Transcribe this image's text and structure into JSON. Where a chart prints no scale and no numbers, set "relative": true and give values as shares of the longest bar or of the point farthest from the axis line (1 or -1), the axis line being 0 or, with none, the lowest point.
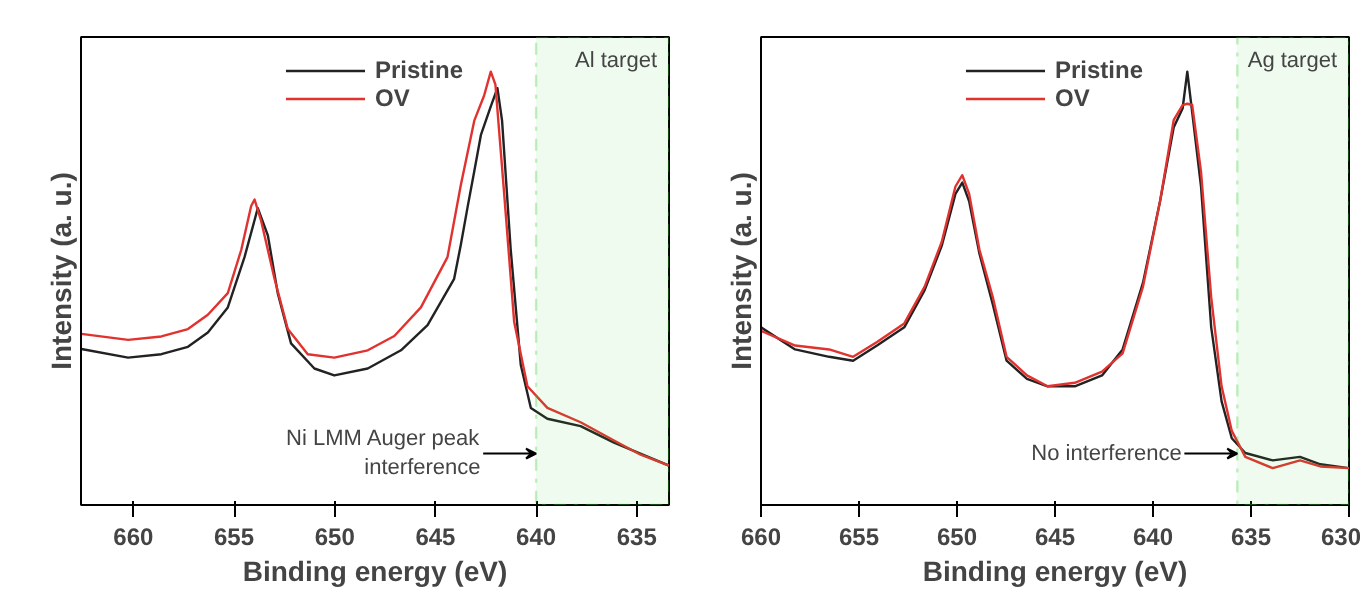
{
  "chart_data": [
    {
      "type": "line",
      "relative": true,
      "xlabel": "Binding energy (eV)",
      "ylabel": "Intensity (a. u.)",
      "xlim": [
        662.6,
        633.4
      ],
      "xticks": [
        660,
        655,
        650,
        645,
        640,
        635
      ],
      "legend": "top",
      "annotations": [
        "Al target",
        "Ni LMM Auger peak interference"
      ],
      "bands": [
        {
          "axis": "x",
          "from": 640,
          "to": 633.4,
          "label": null,
          "color": "#33cc33"
        }
      ],
      "series": [
        {
          "name": "Pristine",
          "color": "#222222",
          "x": [
            662.58,
            660.26,
            658.61,
            657.29,
            656.3,
            655.31,
            654.48,
            653.82,
            653.32,
            652.83,
            652.17,
            651.01,
            650.02,
            648.36,
            646.71,
            645.39,
            644.07,
            643.74,
            643.4,
            643.07,
            642.74,
            642.25,
            641.92,
            641.69,
            641.26,
            640.76,
            640.26,
            639.44,
            637.79,
            636.13,
            633.4
          ],
          "values": [
            0.36,
            0.34,
            0.348,
            0.365,
            0.398,
            0.456,
            0.572,
            0.685,
            0.622,
            0.489,
            0.373,
            0.315,
            0.299,
            0.315,
            0.357,
            0.415,
            0.522,
            0.6,
            0.688,
            0.77,
            0.854,
            0.92,
            0.962,
            0.887,
            0.589,
            0.323,
            0.224,
            0.199,
            0.182,
            0.144,
            0.091
          ]
        },
        {
          "name": "OV",
          "color": "#e0332f",
          "x": [
            662.58,
            660.26,
            658.61,
            657.29,
            656.3,
            655.31,
            654.64,
            654.15,
            653.98,
            653.65,
            652.99,
            652.33,
            651.34,
            650.02,
            648.36,
            647.04,
            645.72,
            644.4,
            643.74,
            643.07,
            642.58,
            642.25,
            642.02,
            641.59,
            641.09,
            640.43,
            639.44,
            637.79,
            636.13,
            634.81,
            633.4
          ],
          "values": [
            0.395,
            0.381,
            0.389,
            0.406,
            0.439,
            0.489,
            0.589,
            0.69,
            0.705,
            0.655,
            0.522,
            0.406,
            0.348,
            0.34,
            0.357,
            0.39,
            0.456,
            0.572,
            0.738,
            0.887,
            0.945,
            1.0,
            0.97,
            0.721,
            0.423,
            0.274,
            0.224,
            0.191,
            0.149,
            0.116,
            0.091
          ]
        }
      ]
    },
    {
      "type": "line",
      "relative": true,
      "xlabel": "Binding energy (eV)",
      "ylabel": "Intensity (a. u.)",
      "xlim": [
        660,
        630
      ],
      "xticks": [
        660,
        655,
        650,
        645,
        640,
        635,
        630
      ],
      "legend": "top",
      "annotations": [
        "Ag target",
        "No interference"
      ],
      "bands": [
        {
          "axis": "x",
          "from": 635.7,
          "to": 630,
          "label": null,
          "color": "#33cc33"
        }
      ],
      "series": [
        {
          "name": "Pristine",
          "color": "#222222",
          "x": [
            660,
            658.26,
            656.52,
            655.3,
            654.08,
            652.69,
            651.65,
            650.78,
            650.08,
            649.73,
            649.38,
            648.86,
            648.17,
            647.47,
            646.43,
            645.38,
            643.99,
            642.6,
            641.55,
            640.51,
            639.64,
            638.94,
            638.49,
            638.25,
            638.0,
            637.55,
            637.03,
            636.5,
            635.98,
            635.29,
            633.89,
            632.5,
            631.46,
            630
          ],
          "values": [
            0.41,
            0.359,
            0.342,
            0.333,
            0.368,
            0.41,
            0.496,
            0.598,
            0.718,
            0.744,
            0.701,
            0.581,
            0.462,
            0.333,
            0.291,
            0.274,
            0.274,
            0.299,
            0.359,
            0.513,
            0.701,
            0.872,
            0.915,
            1.0,
            0.906,
            0.735,
            0.41,
            0.239,
            0.154,
            0.12,
            0.103,
            0.111,
            0.094,
            0.085
          ]
        },
        {
          "name": "OV",
          "color": "#e0332f",
          "x": [
            660,
            658.26,
            656.52,
            655.3,
            654.08,
            652.69,
            651.65,
            650.78,
            650.08,
            649.73,
            649.38,
            648.86,
            648.17,
            647.47,
            646.43,
            645.38,
            643.99,
            642.6,
            641.55,
            640.51,
            639.64,
            638.94,
            638.49,
            638.25,
            638.0,
            637.55,
            637.03,
            636.5,
            635.98,
            635.29,
            633.89,
            632.5,
            631.46,
            630
          ],
          "values": [
            0.402,
            0.368,
            0.359,
            0.342,
            0.376,
            0.419,
            0.504,
            0.607,
            0.735,
            0.761,
            0.718,
            0.59,
            0.479,
            0.342,
            0.299,
            0.274,
            0.282,
            0.308,
            0.35,
            0.504,
            0.701,
            0.889,
            0.923,
            0.926,
            0.923,
            0.769,
            0.479,
            0.274,
            0.171,
            0.111,
            0.085,
            0.103,
            0.089,
            0.085
          ]
        }
      ]
    }
  ]
}
